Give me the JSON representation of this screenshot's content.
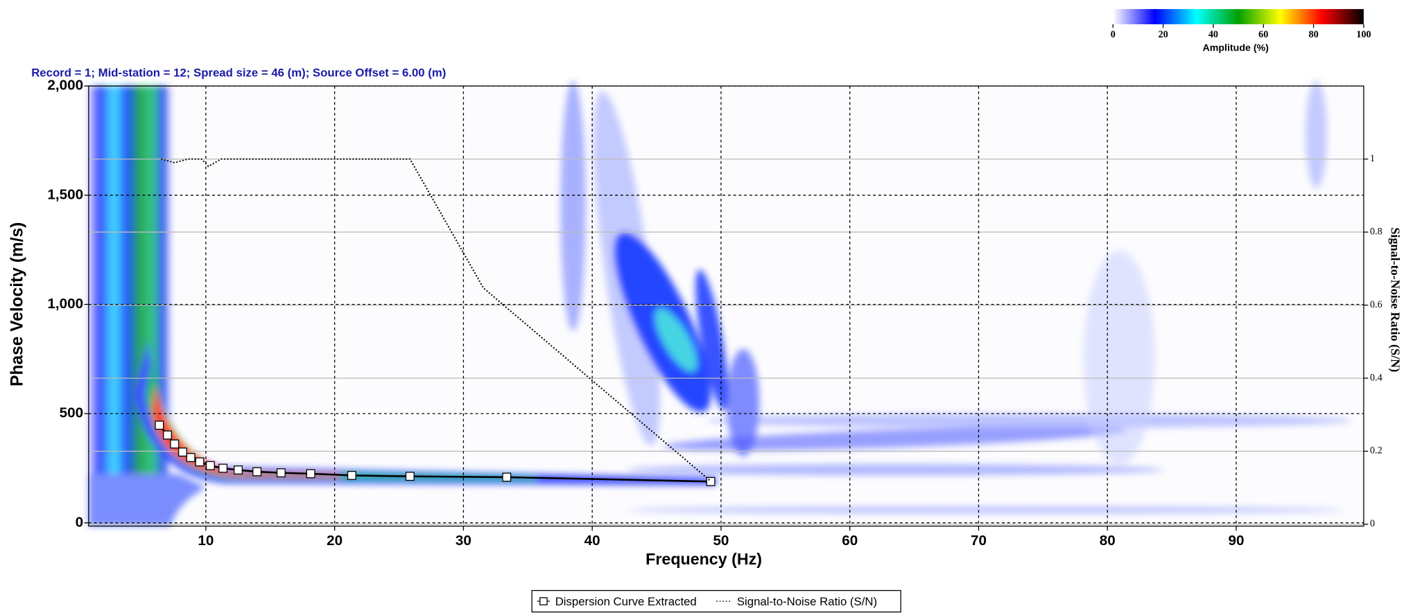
{
  "chart_data": {
    "type": "line",
    "title": "Record = 1; Mid-station = 12; Spread size = 46 (m); Source Offset = 6.00 (m)",
    "x_label": "Frequency (Hz)",
    "y_label": "Phase Velocity (m/s)",
    "y2_label": "Signal-to-Noise Ratio (S/N)",
    "xlim": [
      0.9,
      99.9
    ],
    "xticks": [
      10,
      20,
      30,
      40,
      50,
      60,
      70,
      80,
      90
    ],
    "ylim": [
      -15,
      2000
    ],
    "yticks": [
      0,
      500,
      {
        "value": 1000,
        "label": "1,000"
      },
      {
        "value": 1500,
        "label": "1,500"
      },
      {
        "value": 2000,
        "label": "2,000"
      }
    ],
    "y2lim": [
      -0.005,
      1.2
    ],
    "y2ticks": [
      0,
      0.2,
      0.4,
      0.6,
      0.8,
      1
    ],
    "grid": true,
    "y2grid": true,
    "legend": "bottom",
    "series": [
      {
        "name": "Dispersion Curve Extracted",
        "color": "#000000",
        "marker": "square",
        "x": [
          6.39,
          7.02,
          7.57,
          8.2,
          8.83,
          9.52,
          10.35,
          11.33,
          12.51,
          13.97,
          15.84,
          18.14,
          21.33,
          25.85,
          33.36,
          49.2
        ],
        "values": [
          447,
          402,
          361,
          324,
          299,
          279,
          262,
          250,
          242,
          234,
          229,
          225,
          217,
          213,
          209,
          189
        ]
      },
      {
        "name": "Signal-to-Noise Ratio (S/N)",
        "color": "#000000",
        "style": "dotted",
        "axis": "y2",
        "x": [
          6.53,
          7.57,
          8.62,
          9.66,
          10.2,
          11.19,
          25.85,
          31.55,
          49.2
        ],
        "values": [
          1.0,
          0.99,
          1.0,
          1.0,
          0.98,
          1.0,
          1.0,
          0.647,
          0.118
        ]
      }
    ],
    "colorbar": {
      "label": "Amplitude (%)",
      "lim": [
        0,
        100
      ],
      "ticks": [
        0,
        20,
        40,
        60,
        80,
        100
      ],
      "colors": [
        "#ffffff",
        "#0000ff",
        "#00ffff",
        "#00a000",
        "#ffff00",
        "#ff0000",
        "#000000"
      ]
    }
  }
}
